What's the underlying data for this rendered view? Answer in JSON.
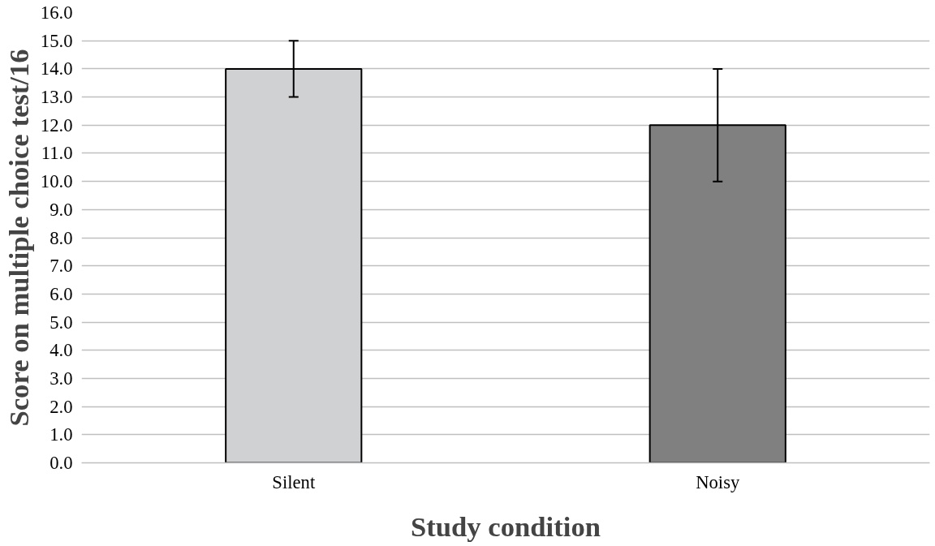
{
  "chart_data": {
    "type": "bar",
    "xlabel": "Study condition",
    "ylabel": "Score on multiple choice test/16",
    "categories": [
      "Silent",
      "Noisy"
    ],
    "values": [
      14.0,
      12.0
    ],
    "colors": [
      "#d0d1d3",
      "#808080"
    ],
    "errors": [
      [
        13.0,
        15.0
      ],
      [
        10.0,
        14.0
      ]
    ],
    "ylim": [
      0,
      16
    ],
    "yticks": [
      {
        "value": 0,
        "label": "0.0"
      },
      {
        "value": 1,
        "label": "1.0"
      },
      {
        "value": 2,
        "label": "2.0"
      },
      {
        "value": 3,
        "label": "3.0"
      },
      {
        "value": 4,
        "label": "4.0"
      },
      {
        "value": 5,
        "label": "5.0"
      },
      {
        "value": 6,
        "label": "6.0"
      },
      {
        "value": 7,
        "label": "7.0"
      },
      {
        "value": 8,
        "label": "8.0"
      },
      {
        "value": 9,
        "label": "9.0"
      },
      {
        "value": 10,
        "label": "10.0"
      },
      {
        "value": 11,
        "label": "11.0"
      },
      {
        "value": 12,
        "label": "12.0"
      },
      {
        "value": 13,
        "label": "13.0"
      },
      {
        "value": 14,
        "label": "14.0"
      },
      {
        "value": 15,
        "label": "15.0"
      },
      {
        "value": 16,
        "label": "16.0"
      }
    ],
    "grid": "y"
  }
}
